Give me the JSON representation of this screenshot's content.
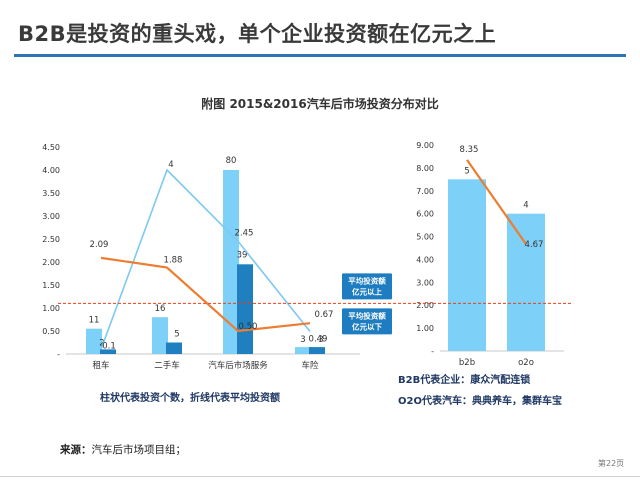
{
  "header": {
    "title": "B2B是投资的重头戏，单个企业投资额在亿元之上"
  },
  "figure_title": "附图   2015&2016汽车后市场投资分布对比",
  "callouts": {
    "above": [
      "平均投资额",
      "亿元以上"
    ],
    "below": [
      "平均投资额",
      "亿元以下"
    ]
  },
  "notes": {
    "left_caption": "柱状代表投资个数，折线代表平均投资额",
    "b2b_rep": "B2B代表企业：康众汽配连锁",
    "o2o_rep": "O2O代表汽车：典典养车，集群车宝"
  },
  "source": {
    "label": "来源：",
    "text": "汽车后市场项目组；"
  },
  "page_number": "第22页",
  "colors": {
    "light_bar": "#7dd0f7",
    "dark_bar": "#1f7fbf",
    "light_line": "#7dc9f0",
    "orange_line": "#ed7d31",
    "threshold": "#e8401c",
    "callout_bg": "#1e7dc0"
  },
  "chart_data": [
    {
      "type": "bar",
      "categories": [
        "租车",
        "二手车",
        "汽车后市场服务",
        "车险"
      ],
      "ylim": [
        0,
        4.5
      ],
      "yticks": [
        "4.50",
        "4.00",
        "3.50",
        "3.00",
        "2.50",
        "2.00",
        "1.50",
        "1.00",
        "0.50",
        "-"
      ],
      "series": [
        {
          "kind": "bar",
          "shade": "light",
          "heights": [
            0.55,
            0.8,
            4.0,
            0.15
          ],
          "labels": [
            "11",
            "16",
            "80",
            "3"
          ]
        },
        {
          "kind": "bar",
          "shade": "dark",
          "heights": [
            0.1,
            0.25,
            1.95,
            0.15
          ],
          "labels": [
            "2",
            "5",
            "39",
            "3"
          ]
        },
        {
          "kind": "line",
          "shade": "light",
          "values": [
            0.1,
            4,
            2.45,
            0.49
          ],
          "labels": [
            "0.1",
            "4",
            "2.45",
            "0.49"
          ]
        },
        {
          "kind": "line",
          "shade": "orange",
          "values": [
            2.09,
            1.88,
            0.5,
            0.67
          ],
          "labels": [
            "2.09",
            "1.88",
            "0.50",
            "0.67"
          ]
        }
      ],
      "threshold": 1.1
    },
    {
      "type": "bar",
      "categories": [
        "b2b",
        "o2o"
      ],
      "ylim": [
        0,
        9
      ],
      "yticks": [
        "9.00",
        "8.00",
        "7.00",
        "6.00",
        "5.00",
        "4.00",
        "3.00",
        "2.00",
        "1.00",
        "-"
      ],
      "series": [
        {
          "kind": "bar",
          "shade": "light",
          "heights": [
            7.5,
            6.0
          ],
          "labels": [
            "5",
            "4"
          ]
        },
        {
          "kind": "line",
          "shade": "orange",
          "values": [
            8.35,
            4.67
          ],
          "labels": [
            "8.35",
            "4.67"
          ]
        }
      ],
      "threshold": 2.0
    }
  ]
}
